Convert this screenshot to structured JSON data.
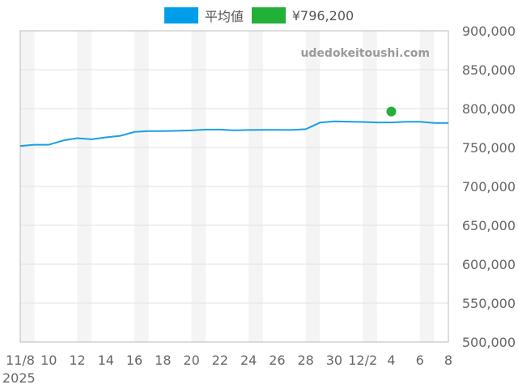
{
  "chart_data": {
    "type": "line",
    "watermark": "udedokeitoushi.com",
    "x_tick_labels": [
      "11/8",
      "10",
      "12",
      "14",
      "16",
      "18",
      "20",
      "22",
      "24",
      "26",
      "28",
      "30",
      "12/2",
      "4",
      "6",
      "8"
    ],
    "x_year_label": "2025",
    "ylim": [
      500000,
      900000
    ],
    "y_ticks": [
      "500,000",
      "550,000",
      "600,000",
      "650,000",
      "700,000",
      "750,000",
      "800,000",
      "850,000",
      "900,000"
    ],
    "x_dates": [
      "11/8",
      "11/9",
      "11/10",
      "11/11",
      "11/12",
      "11/13",
      "11/14",
      "11/15",
      "11/16",
      "11/17",
      "11/18",
      "11/19",
      "11/20",
      "11/21",
      "11/22",
      "11/23",
      "11/24",
      "11/25",
      "11/26",
      "11/27",
      "11/28",
      "11/29",
      "11/30",
      "12/1",
      "12/2",
      "12/3",
      "12/4",
      "12/5",
      "12/6",
      "12/7",
      "12/8"
    ],
    "series": [
      {
        "name": "平均値",
        "color": "#1a9fe0",
        "legend_color": "#009ee8",
        "values": [
          752000,
          753500,
          753500,
          759000,
          762000,
          760500,
          763000,
          765000,
          770000,
          771000,
          771000,
          771500,
          772000,
          773000,
          773000,
          772000,
          772500,
          772700,
          772700,
          772500,
          773500,
          782000,
          783500,
          783200,
          782800,
          782200,
          782200,
          783000,
          783000,
          781500,
          781500
        ]
      },
      {
        "name": "¥796,200",
        "color": "#22b038",
        "type": "point",
        "points": [
          {
            "x": "12/4",
            "y": 796200
          }
        ]
      }
    ],
    "grid": true,
    "legend_position": "top-center"
  }
}
